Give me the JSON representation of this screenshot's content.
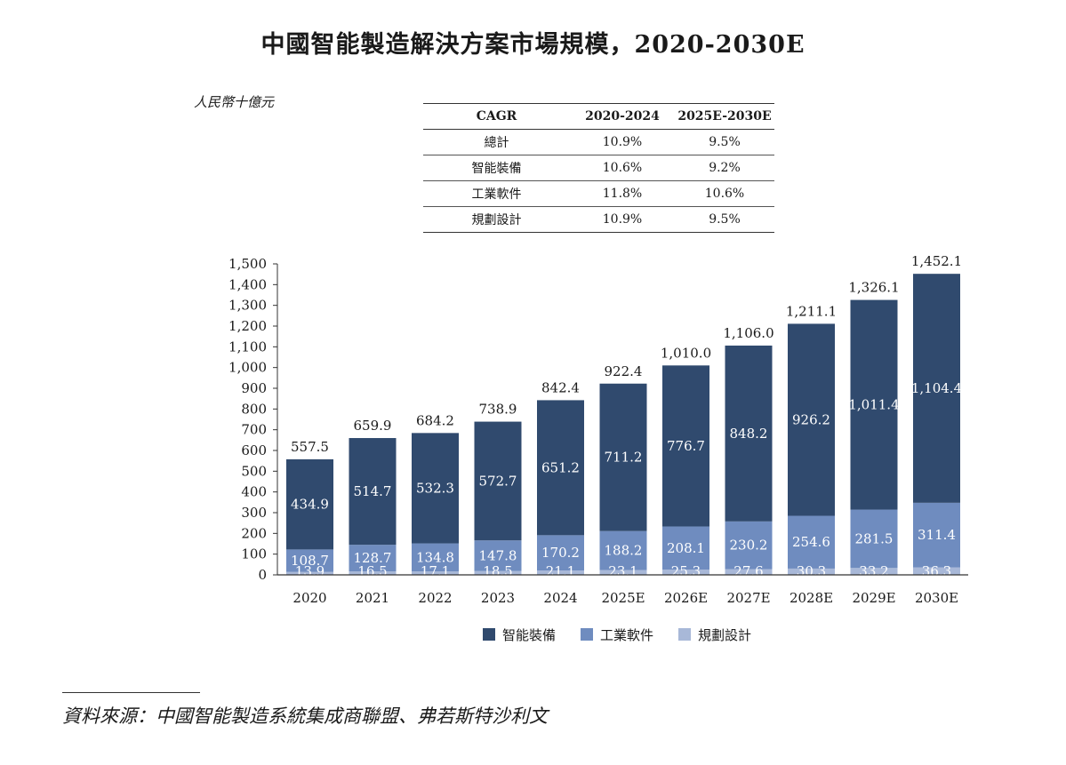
{
  "chart_data": {
    "type": "bar",
    "stacked": true,
    "title": "中國智能製造解決方案市場規模，2020-2030E",
    "ylabel": "人民幣十億元",
    "xlabel": "",
    "ylim": [
      0,
      1500
    ],
    "yticks": [
      "0",
      "100",
      "200",
      "300",
      "400",
      "500",
      "600",
      "700",
      "800",
      "900",
      "1,000",
      "1,100",
      "1,200",
      "1,300",
      "1,400",
      "1,500"
    ],
    "ytick_values": [
      0,
      100,
      200,
      300,
      400,
      500,
      600,
      700,
      800,
      900,
      1000,
      1100,
      1200,
      1300,
      1400,
      1500
    ],
    "categories": [
      "2020",
      "2021",
      "2022",
      "2023",
      "2024",
      "2025E",
      "2026E",
      "2027E",
      "2028E",
      "2029E",
      "2030E"
    ],
    "series": [
      {
        "name": "規劃設計",
        "color": "#a8b8d8",
        "values": [
          13.9,
          16.5,
          17.1,
          18.5,
          21.1,
          23.1,
          25.3,
          27.6,
          30.3,
          33.2,
          36.3
        ],
        "labels": [
          "13.9",
          "16.5",
          "17.1",
          "18.5",
          "21.1",
          "23.1",
          "25.3",
          "27.6",
          "30.3",
          "33.2",
          "36.3"
        ]
      },
      {
        "name": "工業軟件",
        "color": "#6f8cbf",
        "values": [
          108.7,
          128.7,
          134.8,
          147.8,
          170.2,
          188.2,
          208.1,
          230.2,
          254.6,
          281.5,
          311.4
        ],
        "labels": [
          "108.7",
          "128.7",
          "134.8",
          "147.8",
          "170.2",
          "188.2",
          "208.1",
          "230.2",
          "254.6",
          "281.5",
          "311.4"
        ]
      },
      {
        "name": "智能裝備",
        "color": "#304a6e",
        "values": [
          434.9,
          514.7,
          532.3,
          572.7,
          651.2,
          711.2,
          776.7,
          848.2,
          926.2,
          1011.4,
          1104.4
        ],
        "labels": [
          "434.9",
          "514.7",
          "532.3",
          "572.7",
          "651.2",
          "711.2",
          "776.7",
          "848.2",
          "926.2",
          "1,011.4",
          "1,104.4"
        ]
      }
    ],
    "totals": [
      557.5,
      659.9,
      684.2,
      738.9,
      842.4,
      922.4,
      1010.0,
      1106.0,
      1211.1,
      1326.1,
      1452.1
    ],
    "total_labels": [
      "557.5",
      "659.9",
      "684.2",
      "738.9",
      "842.4",
      "922.4",
      "1,010.0",
      "1,106.0",
      "1,211.1",
      "1,326.1",
      "1,452.1"
    ],
    "legend": {
      "placement": "bottom",
      "items": [
        {
          "label": "智能裝備",
          "color": "#304a6e"
        },
        {
          "label": "工業軟件",
          "color": "#6f8cbf"
        },
        {
          "label": "規劃設計",
          "color": "#a8b8d8"
        }
      ]
    }
  },
  "cagr_table": {
    "headers": [
      "CAGR",
      "2020-2024",
      "2025E-2030E"
    ],
    "rows": [
      [
        "總計",
        "10.9%",
        "9.5%"
      ],
      [
        "智能裝備",
        "10.6%",
        "9.2%"
      ],
      [
        "工業軟件",
        "11.8%",
        "10.6%"
      ],
      [
        "規劃設計",
        "10.9%",
        "9.5%"
      ]
    ]
  },
  "source": "資料來源：中國智能製造系統集成商聯盟、弗若斯特沙利文"
}
